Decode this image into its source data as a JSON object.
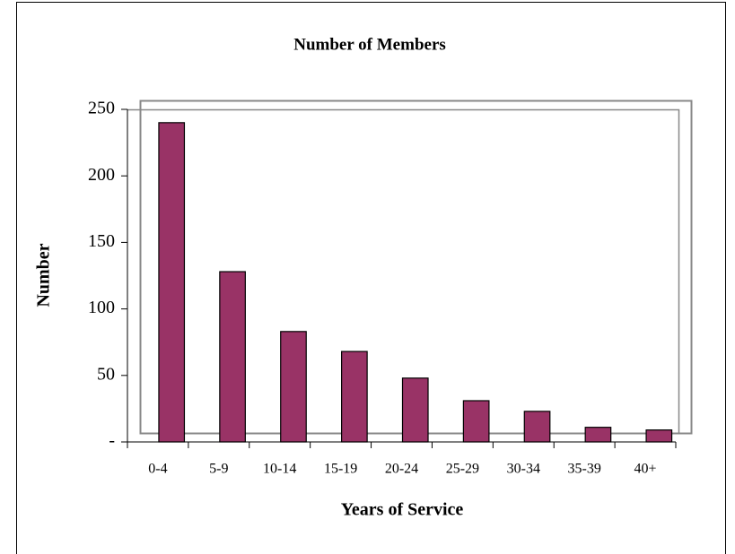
{
  "chart_data": {
    "type": "bar",
    "title": "Number of Members",
    "x_label": "Years of Service",
    "y_label": "Number",
    "categories": [
      "0-4",
      "5-9",
      "10-14",
      "15-19",
      "20-24",
      "25-29",
      "30-34",
      "35-39",
      "40+"
    ],
    "values": [
      240,
      128,
      83,
      68,
      48,
      31,
      23,
      11,
      9
    ],
    "color": "#993366",
    "ylim": [
      0,
      250
    ],
    "yticks": [
      {
        "value": 0,
        "label": "-"
      },
      50,
      100,
      150,
      200,
      250
    ]
  }
}
